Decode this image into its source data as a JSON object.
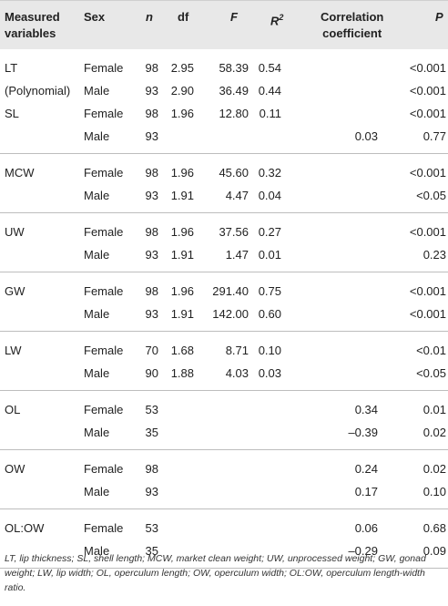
{
  "headers": {
    "variable_line1": "Measured",
    "variable_line2": "variables",
    "sex": "Sex",
    "n": "n",
    "df": "df",
    "f": "F",
    "r2": "R",
    "r2_sup": "2",
    "cc_line1": "Correlation",
    "cc_line2": "coefficient",
    "p": "P"
  },
  "groups": [
    {
      "rows": [
        {
          "variable": "LT",
          "sex": "Female",
          "n": "98",
          "df": "2.95",
          "f": "58.39",
          "r2": "0.54",
          "cc": "",
          "p": "<0.001"
        },
        {
          "variable": "(Polynomial)",
          "sex": "Male",
          "n": "93",
          "df": "2.90",
          "f": "36.49",
          "r2": "0.44",
          "cc": "",
          "p": "<0.001"
        },
        {
          "variable": "SL",
          "sex": "Female",
          "n": "98",
          "df": "1.96",
          "f": "12.80",
          "r2": "0.11",
          "cc": "",
          "p": "<0.001"
        },
        {
          "variable": "",
          "sex": "Male",
          "n": "93",
          "df": "",
          "f": "",
          "r2": "",
          "cc": "0.03",
          "p": "0.77"
        }
      ]
    },
    {
      "rows": [
        {
          "variable": "MCW",
          "sex": "Female",
          "n": "98",
          "df": "1.96",
          "f": "45.60",
          "r2": "0.32",
          "cc": "",
          "p": "<0.001"
        },
        {
          "variable": "",
          "sex": "Male",
          "n": "93",
          "df": "1.91",
          "f": "4.47",
          "r2": "0.04",
          "cc": "",
          "p": "<0.05"
        }
      ]
    },
    {
      "rows": [
        {
          "variable": "UW",
          "sex": "Female",
          "n": "98",
          "df": "1.96",
          "f": "37.56",
          "r2": "0.27",
          "cc": "",
          "p": "<0.001"
        },
        {
          "variable": "",
          "sex": "Male",
          "n": "93",
          "df": "1.91",
          "f": "1.47",
          "r2": "0.01",
          "cc": "",
          "p": "0.23"
        }
      ]
    },
    {
      "rows": [
        {
          "variable": "GW",
          "sex": "Female",
          "n": "98",
          "df": "1.96",
          "f": "291.40",
          "r2": "0.75",
          "cc": "",
          "p": "<0.001"
        },
        {
          "variable": "",
          "sex": "Male",
          "n": "93",
          "df": "1.91",
          "f": "142.00",
          "r2": "0.60",
          "cc": "",
          "p": "<0.001"
        }
      ]
    },
    {
      "rows": [
        {
          "variable": "LW",
          "sex": "Female",
          "n": "70",
          "df": "1.68",
          "f": "8.71",
          "r2": "0.10",
          "cc": "",
          "p": "<0.01"
        },
        {
          "variable": "",
          "sex": "Male",
          "n": "90",
          "df": "1.88",
          "f": "4.03",
          "r2": "0.03",
          "cc": "",
          "p": "<0.05"
        }
      ]
    },
    {
      "rows": [
        {
          "variable": "OL",
          "sex": "Female",
          "n": "53",
          "df": "",
          "f": "",
          "r2": "",
          "cc": "0.34",
          "p": "0.01"
        },
        {
          "variable": "",
          "sex": "Male",
          "n": "35",
          "df": "",
          "f": "",
          "r2": "",
          "cc": "–0.39",
          "p": "0.02"
        }
      ]
    },
    {
      "rows": [
        {
          "variable": "OW",
          "sex": "Female",
          "n": "98",
          "df": "",
          "f": "",
          "r2": "",
          "cc": "0.24",
          "p": "0.02"
        },
        {
          "variable": "",
          "sex": "Male",
          "n": "93",
          "df": "",
          "f": "",
          "r2": "",
          "cc": "0.17",
          "p": "0.10"
        }
      ]
    },
    {
      "rows": [
        {
          "variable": "OL:OW",
          "sex": "Female",
          "n": "53",
          "df": "",
          "f": "",
          "r2": "",
          "cc": "0.06",
          "p": "0.68"
        },
        {
          "variable": "",
          "sex": "Male",
          "n": "35",
          "df": "",
          "f": "",
          "r2": "",
          "cc": "–0.29",
          "p": "0.09"
        }
      ]
    }
  ],
  "footnote": "LT, lip thickness; SL, shell length; MCW, market clean weight; UW, unprocessed weight; GW, gonad weight; LW, lip width; OL, operculum length; OW, operculum width; OL:OW, operculum length-width ratio."
}
